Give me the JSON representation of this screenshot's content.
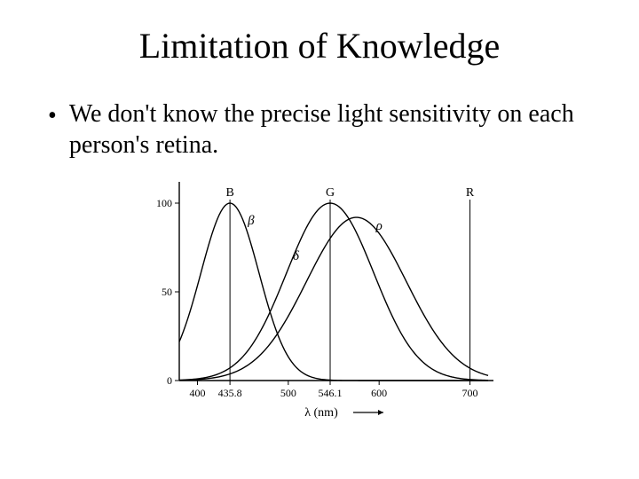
{
  "title": "Limitation of Knowledge",
  "bullet": "We don't know the precise light sensitivity on each person's retina.",
  "chart": {
    "type": "line",
    "background_color": "#ffffff",
    "axis_color": "#000000",
    "curve_color": "#000000",
    "line_width": 1.4,
    "xlim": [
      380,
      720
    ],
    "ylim": [
      0,
      110
    ],
    "xticks": [
      400,
      435.8,
      500,
      546.1,
      600,
      700
    ],
    "yticks": [
      0,
      50,
      100
    ],
    "xlabel": "λ (nm)",
    "arrow_label_fontsize": 14,
    "tick_fontsize": 12,
    "verticals": [
      435.8,
      546.1,
      700
    ],
    "vertical_labels": [
      "B",
      "G",
      "R"
    ],
    "curve_labels": {
      "beta": "β",
      "delta": "δ",
      "rho": "ρ"
    },
    "curves": {
      "beta_B": {
        "peak_x": 435.8,
        "sigma": 32,
        "peak_y": 100
      },
      "delta_G": {
        "peak_x": 546.1,
        "sigma": 48,
        "peak_y": 100
      },
      "rho_R": {
        "peak_x": 575.0,
        "sigma": 55,
        "peak_y": 92
      }
    }
  }
}
